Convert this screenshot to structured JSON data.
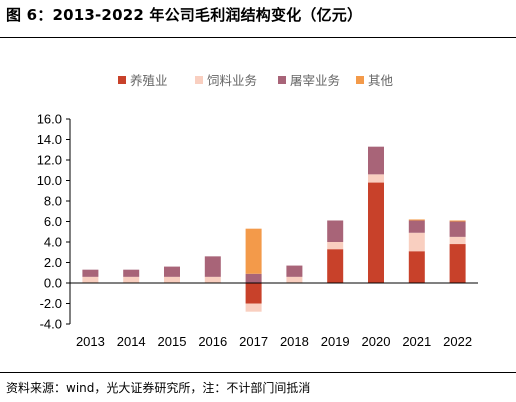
{
  "figure": {
    "title": "图 6：2013-2022 年公司毛利润结构变化（亿元）",
    "source": "资料来源：wind，光大证券研究所，注：不计部门间抵消"
  },
  "chart_data": {
    "type": "bar",
    "stacked": true,
    "categories": [
      "2013",
      "2014",
      "2015",
      "2016",
      "2017",
      "2018",
      "2019",
      "2020",
      "2021",
      "2022"
    ],
    "series": [
      {
        "name": "养殖业",
        "color": "#c8412a",
        "values": [
          0.0,
          0.0,
          0.0,
          0.0,
          -2.0,
          0.0,
          3.3,
          9.8,
          3.1,
          3.8
        ]
      },
      {
        "name": "饲料业务",
        "color": "#f9cfc0",
        "values": [
          0.6,
          0.6,
          0.6,
          0.6,
          -0.8,
          0.6,
          0.7,
          0.8,
          1.8,
          0.7
        ]
      },
      {
        "name": "屠宰业务",
        "color": "#a86478",
        "values": [
          0.7,
          0.7,
          1.0,
          2.0,
          0.9,
          1.1,
          2.1,
          2.7,
          1.2,
          1.5
        ]
      },
      {
        "name": "其他",
        "color": "#f39a4a",
        "values": [
          0.0,
          0.0,
          0.0,
          0.0,
          4.4,
          0.0,
          0.0,
          0.0,
          0.1,
          0.1
        ]
      }
    ],
    "y_ticks": [
      "16.0",
      "14.0",
      "12.0",
      "10.0",
      "8.0",
      "6.0",
      "4.0",
      "2.0",
      "0.0",
      "-2.0",
      "-4.0"
    ],
    "ylim": [
      -4,
      16
    ],
    "legend_position": "top-center",
    "grid": false
  }
}
